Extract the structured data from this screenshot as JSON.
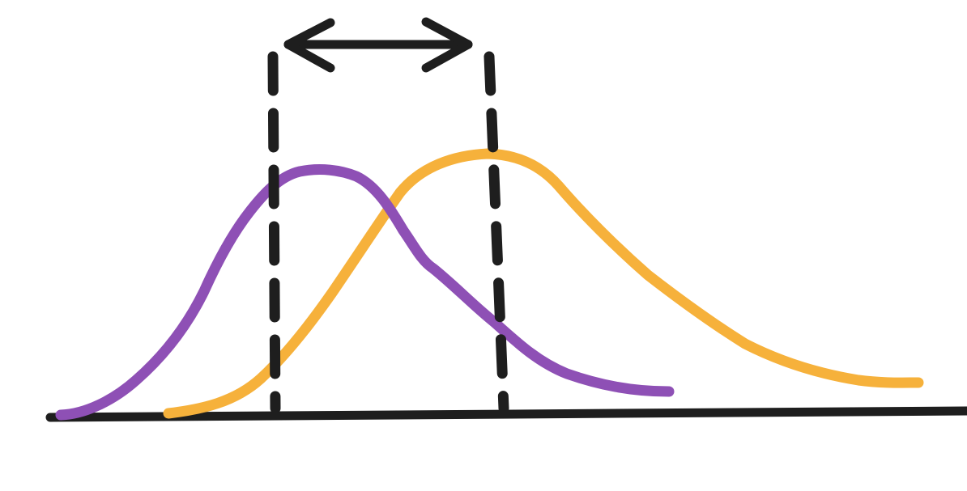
{
  "diagram": {
    "kind": "two-overlapping-distributions",
    "elements": {
      "baseline": {
        "color": "#1e1e1e"
      },
      "distribution_1": {
        "color": "#8e50b5"
      },
      "distribution_2": {
        "color": "#f6b13b"
      },
      "dashed_markers": {
        "color": "#1e1e1e"
      },
      "double_arrow": {
        "color": "#1e1e1e"
      }
    }
  }
}
